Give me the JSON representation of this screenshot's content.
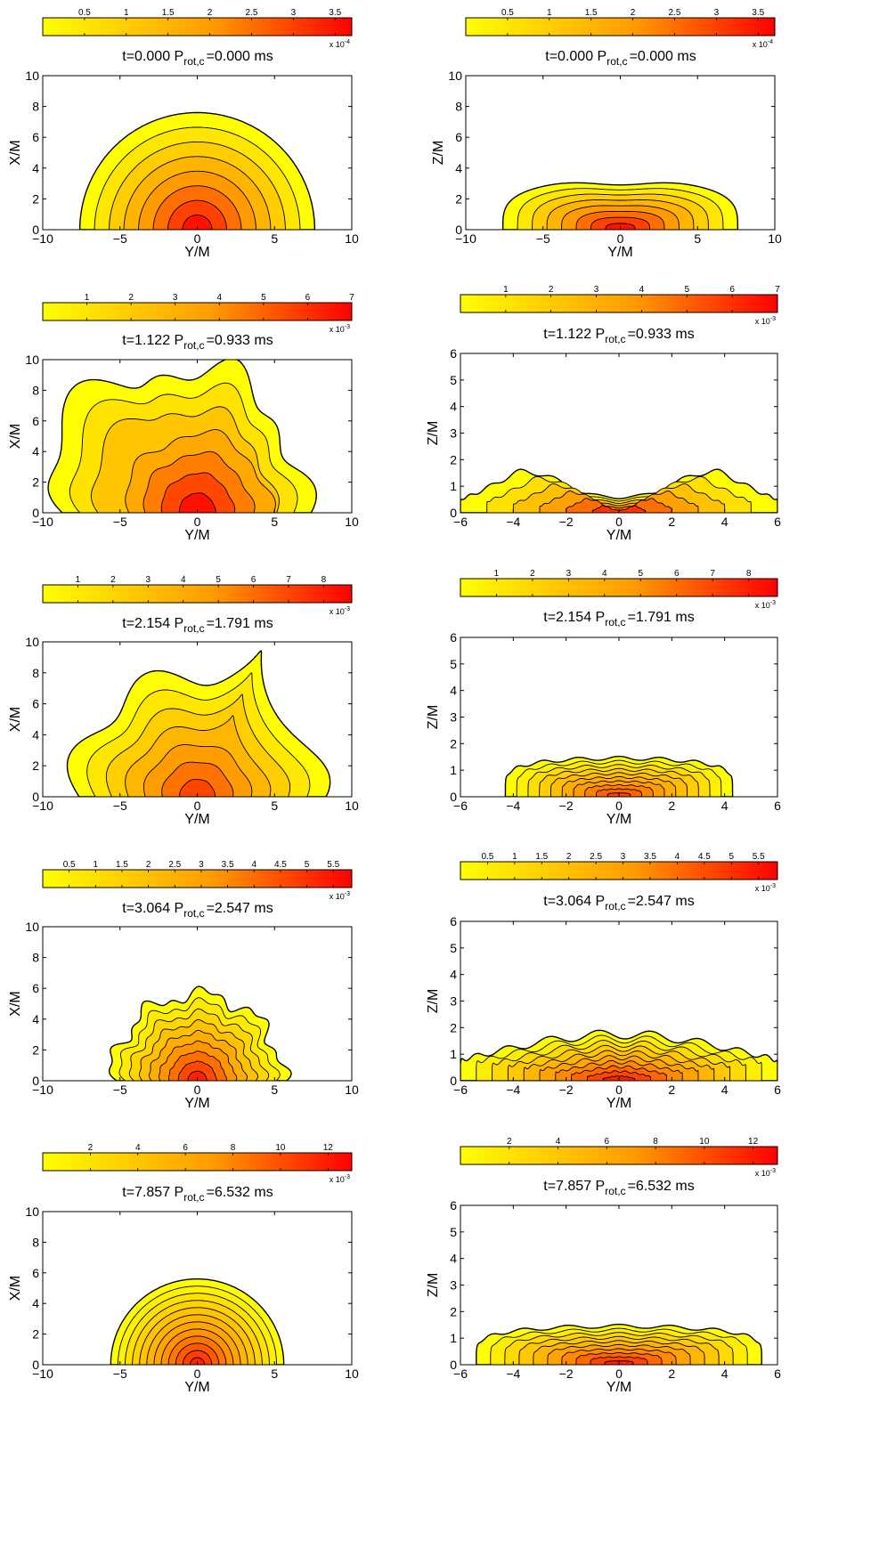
{
  "chart_data": [
    {
      "type": "heatmap",
      "panel": "row1-left",
      "title_parts": {
        "t": "t=0.000 P",
        "sub": "rot,c",
        "rest": "=0.000 ms"
      },
      "xlabel": "Y/M",
      "ylabel": "X/M",
      "xlim": [
        -10,
        10
      ],
      "ylim": [
        0,
        10
      ],
      "xticks": [
        "−10",
        "−5",
        "0",
        "5",
        "10"
      ],
      "yticks": [
        "0",
        "2",
        "4",
        "6",
        "8",
        "10"
      ],
      "colorbar": {
        "ticks": [
          "0.5",
          "1",
          "1.5",
          "2",
          "2.5",
          "3",
          "3.5"
        ],
        "tick_values": [
          0.5,
          1,
          1.5,
          2,
          2.5,
          3,
          3.5
        ],
        "max": 3.7,
        "exponent_base": "x 10",
        "exponent_power": "-4"
      },
      "shape": "dome",
      "extent": 7.6,
      "height": 7.6,
      "peak_level": 0.95,
      "levels": 8
    },
    {
      "type": "heatmap",
      "panel": "row1-right",
      "title_parts": {
        "t": "t=0.000 P",
        "sub": "rot,c",
        "rest": "=0.000 ms"
      },
      "xlabel": "Y/M",
      "ylabel": "Z/M",
      "xlim": [
        -10,
        10
      ],
      "ylim": [
        0,
        10
      ],
      "xticks": [
        "−10",
        "−5",
        "0",
        "5",
        "10"
      ],
      "yticks": [
        "0",
        "2",
        "4",
        "6",
        "8",
        "10"
      ],
      "colorbar": {
        "ticks": [
          "0.5",
          "1",
          "1.5",
          "2",
          "2.5",
          "3",
          "3.5"
        ],
        "tick_values": [
          0.5,
          1,
          1.5,
          2,
          2.5,
          3,
          3.5
        ],
        "max": 3.7,
        "exponent_base": "x 10",
        "exponent_power": "-4"
      },
      "shape": "oblate",
      "extent": 7.6,
      "height": 3.3,
      "peak_level": 0.95,
      "levels": 8
    },
    {
      "type": "heatmap",
      "panel": "row2-left",
      "title_parts": {
        "t": "t=1.122 P",
        "sub": "rot,c",
        "rest": "=0.933 ms"
      },
      "xlabel": "Y/M",
      "ylabel": "X/M",
      "xlim": [
        -10,
        10
      ],
      "ylim": [
        0,
        10
      ],
      "xticks": [
        "−10",
        "−5",
        "0",
        "5",
        "10"
      ],
      "yticks": [
        "0",
        "2",
        "4",
        "6",
        "8",
        "10"
      ],
      "colorbar": {
        "ticks": [
          "1",
          "2",
          "3",
          "4",
          "5",
          "6",
          "7"
        ],
        "tick_values": [
          1,
          2,
          3,
          4,
          5,
          6,
          7
        ],
        "max": 7,
        "exponent_base": "x 10",
        "exponent_power": "-3"
      },
      "shape": "ring",
      "extent": 8.2,
      "height": 9.0,
      "peak_level": 0.95,
      "levels": 7
    },
    {
      "type": "heatmap",
      "panel": "row2-right",
      "title_parts": {
        "t": "t=1.122 P",
        "sub": "rot,c",
        "rest": "=0.933 ms"
      },
      "xlabel": "Y/M",
      "ylabel": "Z/M",
      "xlim": [
        -6,
        6
      ],
      "ylim": [
        0,
        6
      ],
      "xticks": [
        "−6",
        "−4",
        "−2",
        "0",
        "2",
        "4",
        "6"
      ],
      "yticks": [
        "0",
        "1",
        "2",
        "3",
        "4",
        "5",
        "6"
      ],
      "colorbar": {
        "ticks": [
          "1",
          "2",
          "3",
          "4",
          "5",
          "6",
          "7"
        ],
        "tick_values": [
          1,
          2,
          3,
          4,
          5,
          6,
          7
        ],
        "max": 7,
        "exponent_base": "x 10",
        "exponent_power": "-3"
      },
      "shape": "twin",
      "extent": 6,
      "height": 1.6,
      "peak_level": 0.85,
      "levels": 6
    },
    {
      "type": "heatmap",
      "panel": "row3-left",
      "title_parts": {
        "t": "t=2.154 P",
        "sub": "rot,c",
        "rest": "=1.791 ms"
      },
      "xlabel": "Y/M",
      "ylabel": "X/M",
      "xlim": [
        -10,
        10
      ],
      "ylim": [
        0,
        10
      ],
      "xticks": [
        "−10",
        "−5",
        "0",
        "5",
        "10"
      ],
      "yticks": [
        "0",
        "2",
        "4",
        "6",
        "8",
        "10"
      ],
      "colorbar": {
        "ticks": [
          "1",
          "2",
          "3",
          "4",
          "5",
          "6",
          "7",
          "8"
        ],
        "tick_values": [
          1,
          2,
          3,
          4,
          5,
          6,
          7,
          8
        ],
        "max": 8.8,
        "exponent_base": "x 10",
        "exponent_power": "-3"
      },
      "shape": "spiral",
      "extent": 8,
      "height": 7.9,
      "peak_level": 0.8,
      "levels": 7
    },
    {
      "type": "heatmap",
      "panel": "row3-right",
      "title_parts": {
        "t": "t=2.154 P",
        "sub": "rot,c",
        "rest": "=1.791 ms"
      },
      "xlabel": "Y/M",
      "ylabel": "Z/M",
      "xlim": [
        -6,
        6
      ],
      "ylim": [
        0,
        6
      ],
      "xticks": [
        "−6",
        "−4",
        "−2",
        "0",
        "2",
        "4",
        "6"
      ],
      "yticks": [
        "0",
        "1",
        "2",
        "3",
        "4",
        "5",
        "6"
      ],
      "colorbar": {
        "ticks": [
          "1",
          "2",
          "3",
          "4",
          "5",
          "6",
          "7",
          "8"
        ],
        "tick_values": [
          1,
          2,
          3,
          4,
          5,
          6,
          7,
          8
        ],
        "max": 8.8,
        "exponent_base": "x 10",
        "exponent_power": "-3"
      },
      "shape": "flatbump",
      "extent": 4.3,
      "height": 1.45,
      "peak_level": 0.8,
      "levels": 10
    },
    {
      "type": "heatmap",
      "panel": "row4-left",
      "title_parts": {
        "t": "t=3.064 P",
        "sub": "rot,c",
        "rest": "=2.547 ms"
      },
      "xlabel": "Y/M",
      "ylabel": "X/M",
      "xlim": [
        -10,
        10
      ],
      "ylim": [
        0,
        10
      ],
      "xticks": [
        "−10",
        "−5",
        "0",
        "5",
        "10"
      ],
      "yticks": [
        "0",
        "2",
        "4",
        "6",
        "8",
        "10"
      ],
      "colorbar": {
        "ticks": [
          "0.5",
          "1",
          "1.5",
          "2",
          "2.5",
          "3",
          "3.5",
          "4",
          "4.5",
          "5",
          "5.5"
        ],
        "tick_values": [
          0.5,
          1,
          1.5,
          2,
          2.5,
          3,
          3.5,
          4,
          4.5,
          5,
          5.5
        ],
        "max": 5.85,
        "exponent_base": "x 10",
        "exponent_power": "-3"
      },
      "shape": "blob",
      "extent": 5.5,
      "height": 5.6,
      "peak_level": 0.9,
      "levels": 9
    },
    {
      "type": "heatmap",
      "panel": "row4-right",
      "title_parts": {
        "t": "t=3.064 P",
        "sub": "rot,c",
        "rest": "=2.547 ms"
      },
      "xlabel": "Y/M",
      "ylabel": "Z/M",
      "xlim": [
        -6,
        6
      ],
      "ylim": [
        0,
        6
      ],
      "xticks": [
        "−6",
        "−4",
        "−2",
        "0",
        "2",
        "4",
        "6"
      ],
      "yticks": [
        "0",
        "1",
        "2",
        "3",
        "4",
        "5",
        "6"
      ],
      "colorbar": {
        "ticks": [
          "0.5",
          "1",
          "1.5",
          "2",
          "2.5",
          "3",
          "3.5",
          "4",
          "4.5",
          "5",
          "5.5"
        ],
        "tick_values": [
          0.5,
          1,
          1.5,
          2,
          2.5,
          3,
          3.5,
          4,
          4.5,
          5,
          5.5
        ],
        "max": 5.85,
        "exponent_base": "x 10",
        "exponent_power": "-3"
      },
      "shape": "widebump",
      "extent": 6,
      "height": 1.75,
      "peak_level": 0.9,
      "levels": 10
    },
    {
      "type": "heatmap",
      "panel": "row5-left",
      "title_parts": {
        "t": "t=7.857 P",
        "sub": "rot,c",
        "rest": "=6.532 ms"
      },
      "xlabel": "Y/M",
      "ylabel": "X/M",
      "xlim": [
        -10,
        10
      ],
      "ylim": [
        0,
        10
      ],
      "xticks": [
        "−10",
        "−5",
        "0",
        "5",
        "10"
      ],
      "yticks": [
        "0",
        "2",
        "4",
        "6",
        "8",
        "10"
      ],
      "colorbar": {
        "ticks": [
          "2",
          "4",
          "6",
          "8",
          "10",
          "12"
        ],
        "tick_values": [
          2,
          4,
          6,
          8,
          10,
          12
        ],
        "max": 13,
        "exponent_base": "x 10",
        "exponent_power": "-3"
      },
      "shape": "smoothdome",
      "extent": 5.6,
      "height": 5.6,
      "peak_level": 0.9,
      "levels": 12
    },
    {
      "type": "heatmap",
      "panel": "row5-right",
      "title_parts": {
        "t": "t=7.857 P",
        "sub": "rot,c",
        "rest": "=6.532 ms"
      },
      "xlabel": "Y/M",
      "ylabel": "Z/M",
      "xlim": [
        -6,
        6
      ],
      "ylim": [
        0,
        6
      ],
      "xticks": [
        "−6",
        "−4",
        "−2",
        "0",
        "2",
        "4",
        "6"
      ],
      "yticks": [
        "0",
        "1",
        "2",
        "3",
        "4",
        "5",
        "6"
      ],
      "colorbar": {
        "ticks": [
          "2",
          "4",
          "6",
          "8",
          "10",
          "12"
        ],
        "tick_values": [
          2,
          4,
          6,
          8,
          10,
          12
        ],
        "max": 13,
        "exponent_base": "x 10",
        "exponent_power": "-3"
      },
      "shape": "flatbump",
      "extent": 5.4,
      "height": 1.45,
      "peak_level": 0.9,
      "levels": 10
    }
  ]
}
